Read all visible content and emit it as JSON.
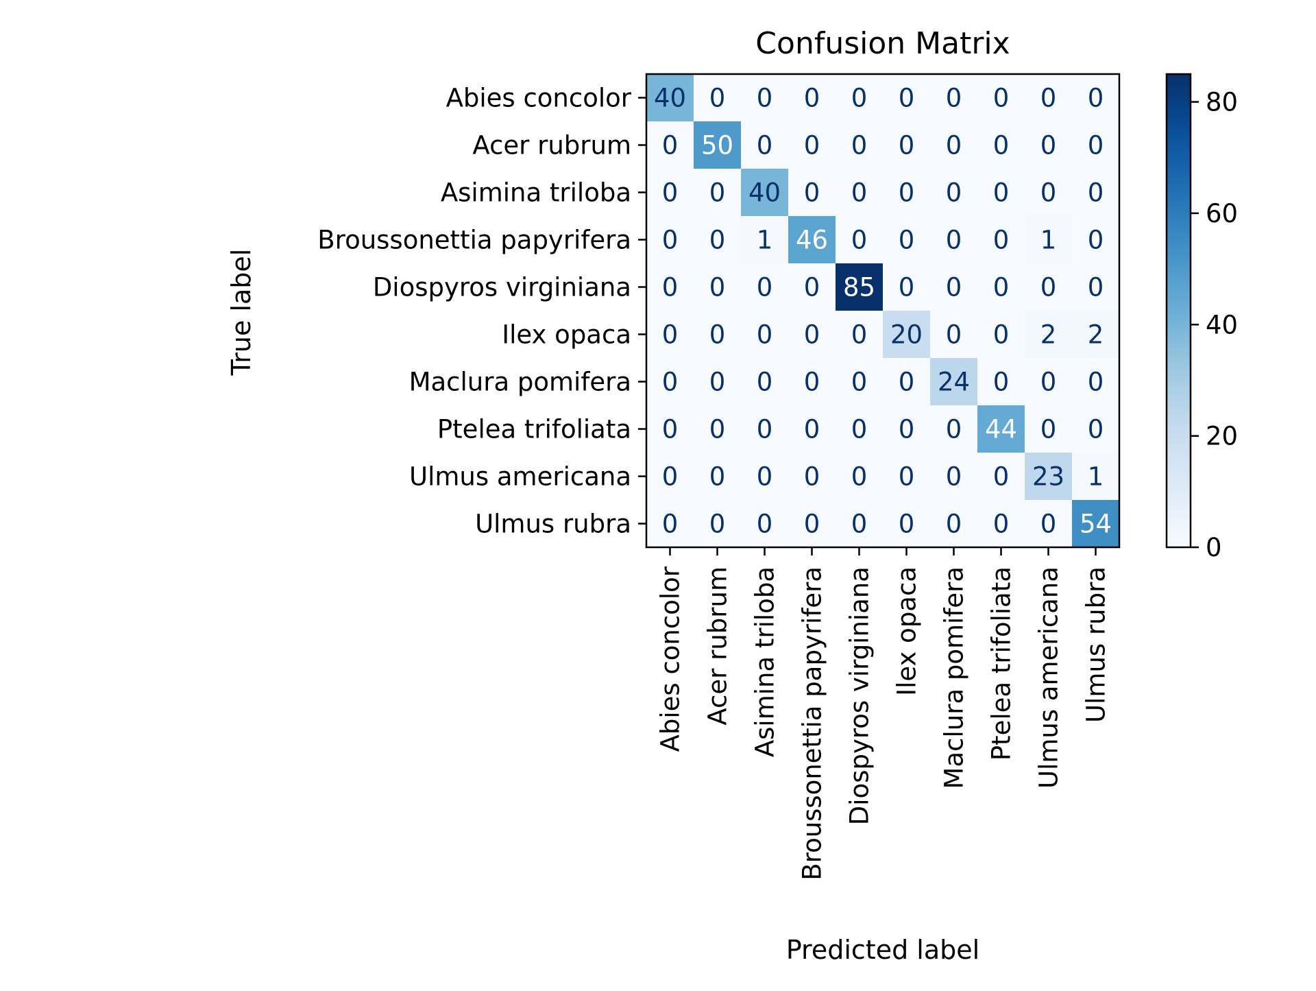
{
  "chart_data": {
    "type": "heatmap",
    "title": "Confusion Matrix",
    "xlabel": "Predicted label",
    "ylabel": "True label",
    "labels": [
      "Abies concolor",
      "Acer rubrum",
      "Asimina triloba",
      "Broussonettia papyrifera",
      "Diospyros virginiana",
      "Ilex opaca",
      "Maclura pomifera",
      "Ptelea trifoliata",
      "Ulmus americana",
      "Ulmus rubra"
    ],
    "matrix": [
      [
        40,
        0,
        0,
        0,
        0,
        0,
        0,
        0,
        0,
        0
      ],
      [
        0,
        50,
        0,
        0,
        0,
        0,
        0,
        0,
        0,
        0
      ],
      [
        0,
        0,
        40,
        0,
        0,
        0,
        0,
        0,
        0,
        0
      ],
      [
        0,
        0,
        1,
        46,
        0,
        0,
        0,
        0,
        1,
        0
      ],
      [
        0,
        0,
        0,
        0,
        85,
        0,
        0,
        0,
        0,
        0
      ],
      [
        0,
        0,
        0,
        0,
        0,
        20,
        0,
        0,
        2,
        2
      ],
      [
        0,
        0,
        0,
        0,
        0,
        0,
        24,
        0,
        0,
        0
      ],
      [
        0,
        0,
        0,
        0,
        0,
        0,
        0,
        44,
        0,
        0
      ],
      [
        0,
        0,
        0,
        0,
        0,
        0,
        0,
        0,
        23,
        1
      ],
      [
        0,
        0,
        0,
        0,
        0,
        0,
        0,
        0,
        0,
        54
      ]
    ],
    "colormap": "Blues",
    "colorbar": {
      "range": [
        0,
        85
      ],
      "ticks": [
        0,
        20,
        40,
        60,
        80
      ]
    }
  }
}
